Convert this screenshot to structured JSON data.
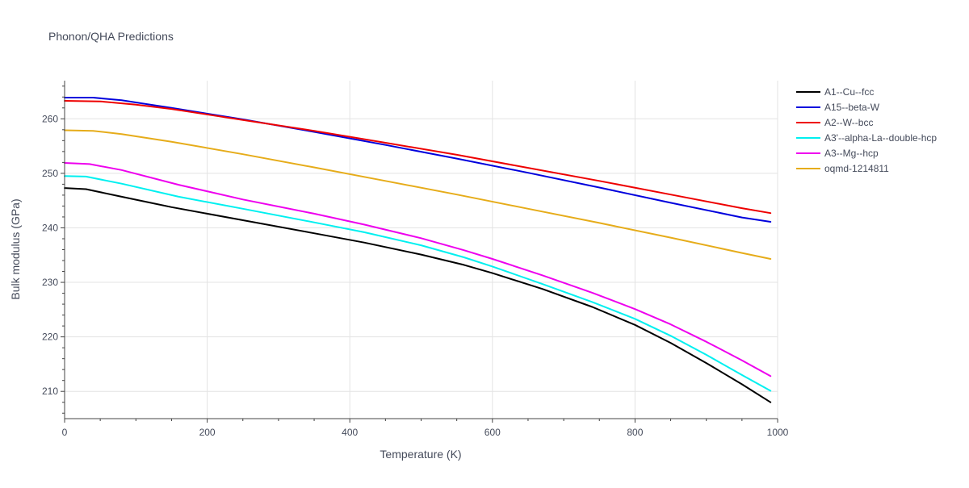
{
  "chart_data": {
    "type": "line",
    "title": "Phonon/QHA Predictions",
    "xlabel": "Temperature (K)",
    "ylabel": "Bulk modulus (GPa)",
    "xlim": [
      0,
      1000
    ],
    "ylim": [
      205,
      267
    ],
    "x_ticks": [
      0,
      200,
      400,
      600,
      800,
      1000
    ],
    "y_ticks": [
      210,
      220,
      230,
      240,
      250,
      260
    ],
    "grid": true,
    "legend_position": "top-right",
    "series": [
      {
        "name": "A1--Cu--fcc",
        "color": "#000000",
        "x": [
          0,
          30,
          80,
          150,
          250,
          350,
          420,
          500,
          560,
          600,
          670,
          740,
          800,
          850,
          900,
          950,
          990
        ],
        "y": [
          247.3,
          247.1,
          245.7,
          243.8,
          241.4,
          239.0,
          237.3,
          235.1,
          233.2,
          231.7,
          228.8,
          225.5,
          222.2,
          218.9,
          215.2,
          211.3,
          208.0
        ]
      },
      {
        "name": "A15--beta-W",
        "color": "#0000dd",
        "x": [
          0,
          40,
          80,
          150,
          250,
          350,
          450,
          550,
          650,
          750,
          850,
          950,
          990
        ],
        "y": [
          263.9,
          263.9,
          263.4,
          262.0,
          259.9,
          257.6,
          255.2,
          252.7,
          250.1,
          247.4,
          244.6,
          241.9,
          241.1
        ]
      },
      {
        "name": "A2--W--bcc",
        "color": "#ee0000",
        "x": [
          0,
          50,
          100,
          150,
          250,
          350,
          450,
          550,
          650,
          750,
          850,
          950,
          990
        ],
        "y": [
          263.3,
          263.2,
          262.6,
          261.8,
          259.8,
          257.8,
          255.6,
          253.4,
          251.0,
          248.6,
          246.1,
          243.6,
          242.7
        ]
      },
      {
        "name": "A3'--alpha-La--double-hcp",
        "color": "#00f0f0",
        "x": [
          0,
          30,
          80,
          160,
          250,
          350,
          420,
          500,
          560,
          600,
          670,
          740,
          800,
          850,
          900,
          950,
          990
        ],
        "y": [
          249.5,
          249.4,
          248.1,
          245.7,
          243.5,
          241.0,
          239.2,
          236.8,
          234.6,
          232.9,
          229.7,
          226.4,
          223.3,
          220.2,
          216.7,
          213.0,
          210.1
        ]
      },
      {
        "name": "A3--Mg--hcp",
        "color": "#ee00ee",
        "x": [
          0,
          35,
          80,
          160,
          250,
          350,
          420,
          500,
          560,
          600,
          670,
          740,
          800,
          850,
          900,
          950,
          990
        ],
        "y": [
          251.9,
          251.7,
          250.6,
          247.9,
          245.2,
          242.6,
          240.6,
          238.1,
          235.9,
          234.3,
          231.3,
          228.1,
          225.1,
          222.3,
          219.1,
          215.7,
          212.8
        ]
      },
      {
        "name": "oqmd-1214811",
        "color": "#e6ac1a",
        "x": [
          0,
          40,
          80,
          150,
          250,
          350,
          450,
          550,
          650,
          750,
          850,
          950,
          990
        ],
        "y": [
          257.9,
          257.8,
          257.2,
          255.8,
          253.5,
          251.1,
          248.6,
          246.1,
          243.5,
          240.9,
          238.2,
          235.4,
          234.3
        ]
      }
    ]
  }
}
